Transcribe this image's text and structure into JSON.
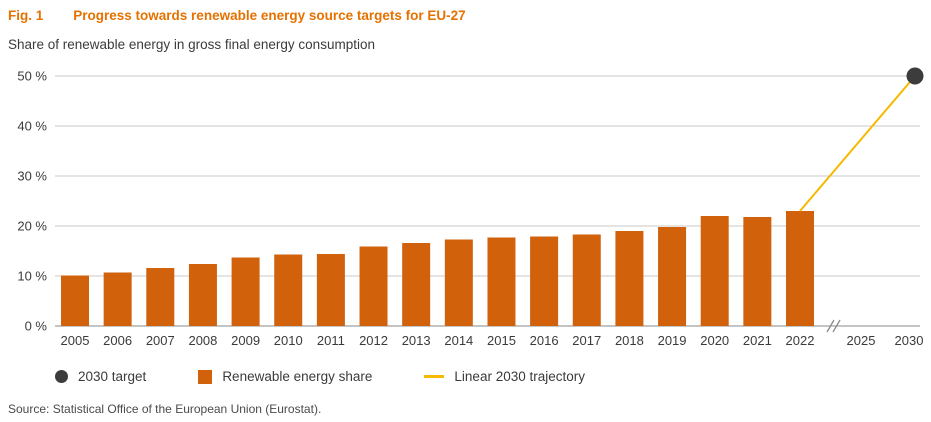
{
  "chart_data": {
    "type": "bar",
    "fig_label": "Fig. 1",
    "title": "Progress towards renewable energy source targets for EU-27",
    "subtitle": "Share of renewable energy in gross final energy consumption",
    "categories": [
      "2005",
      "2006",
      "2007",
      "2008",
      "2009",
      "2010",
      "2011",
      "2012",
      "2013",
      "2014",
      "2015",
      "2016",
      "2017",
      "2018",
      "2019",
      "2020",
      "2021",
      "2022"
    ],
    "values": [
      10.1,
      10.7,
      11.6,
      12.4,
      13.7,
      14.3,
      14.4,
      15.9,
      16.6,
      17.3,
      17.7,
      17.9,
      18.3,
      19.0,
      19.8,
      22.0,
      21.8,
      23.0
    ],
    "ylim": [
      0,
      50
    ],
    "yticks": [
      0,
      10,
      20,
      30,
      40,
      50
    ],
    "ytick_suffix": " %",
    "axis_break": true,
    "extra_x_labels": [
      "2025",
      "2030"
    ],
    "target": {
      "year": "2030",
      "value": 50
    },
    "trajectory": {
      "from_year": "2022",
      "from_value": 23.0,
      "to_year": "2030",
      "to_value": 50
    },
    "grid": true,
    "legend_position": "bottom",
    "legend": [
      {
        "type": "dot",
        "label": "2030 target"
      },
      {
        "type": "square",
        "label": "Renewable energy share"
      },
      {
        "type": "line",
        "label": "Linear 2030 trajectory"
      }
    ],
    "colors": {
      "title": "#e57200",
      "bar": "#d2610c",
      "trajectory": "#f5b900",
      "target_dot": "#3c3c3c"
    },
    "source": "Source: Statistical Office of the European Union (Eurostat)."
  }
}
